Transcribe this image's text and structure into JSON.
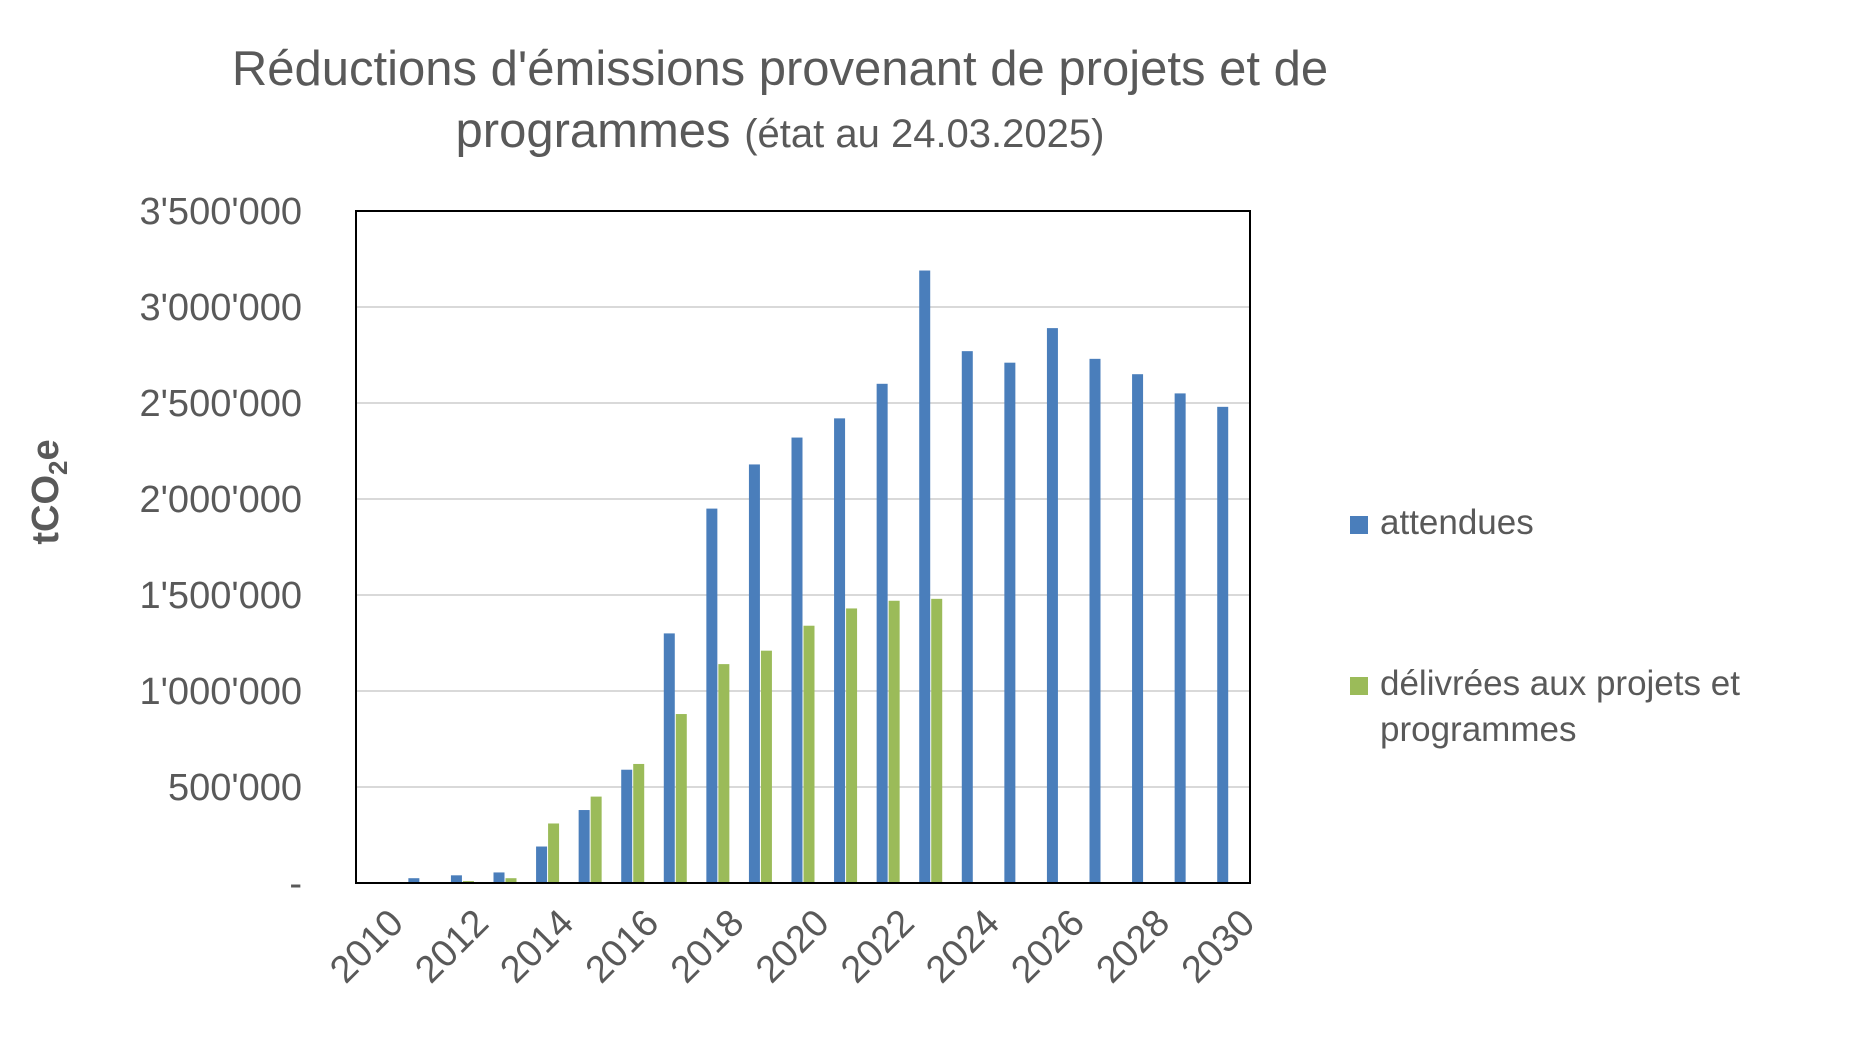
{
  "chart_data": {
    "type": "bar",
    "title": "Réductions d'émissions provenant de projets et de programmes",
    "subtitle": "(état au 24.03.2025)",
    "ylabel": "tCO2e",
    "ylabel_parts": {
      "before": "tCO",
      "sub": "2",
      "after": "e"
    },
    "xlabel": "",
    "ylim": [
      0,
      3500000
    ],
    "y_ticks": [
      0,
      500000,
      1000000,
      1500000,
      2000000,
      2500000,
      3000000,
      3500000
    ],
    "y_tick_labels": [
      "-",
      "500'000",
      "1'000'000",
      "1'500'000",
      "2'000'000",
      "2'500'000",
      "3'000'000",
      "3'500'000"
    ],
    "grid": true,
    "legend_position": "right",
    "categories": [
      "2010",
      "2011",
      "2012",
      "2013",
      "2014",
      "2015",
      "2016",
      "2017",
      "2018",
      "2019",
      "2020",
      "2021",
      "2022",
      "2023",
      "2024",
      "2025",
      "2026",
      "2027",
      "2028",
      "2029",
      "2030"
    ],
    "x_tick_labels": [
      "2010",
      "2012",
      "2014",
      "2016",
      "2018",
      "2020",
      "2022",
      "2024",
      "2026",
      "2028",
      "2030"
    ],
    "series": [
      {
        "name": "attendues",
        "color": "#4a7ebb",
        "values": [
          5000,
          25000,
          40000,
          55000,
          190000,
          380000,
          590000,
          1300000,
          1950000,
          2180000,
          2320000,
          2420000,
          2600000,
          3190000,
          2770000,
          2710000,
          2890000,
          2730000,
          2650000,
          2550000,
          2480000
        ]
      },
      {
        "name": "délivrées aux projets et programmes",
        "color": "#9bbb59",
        "values": [
          0,
          5000,
          10000,
          25000,
          310000,
          450000,
          620000,
          880000,
          1140000,
          1210000,
          1340000,
          1430000,
          1470000,
          1480000,
          0,
          0,
          0,
          0,
          0,
          0,
          0
        ]
      }
    ]
  }
}
